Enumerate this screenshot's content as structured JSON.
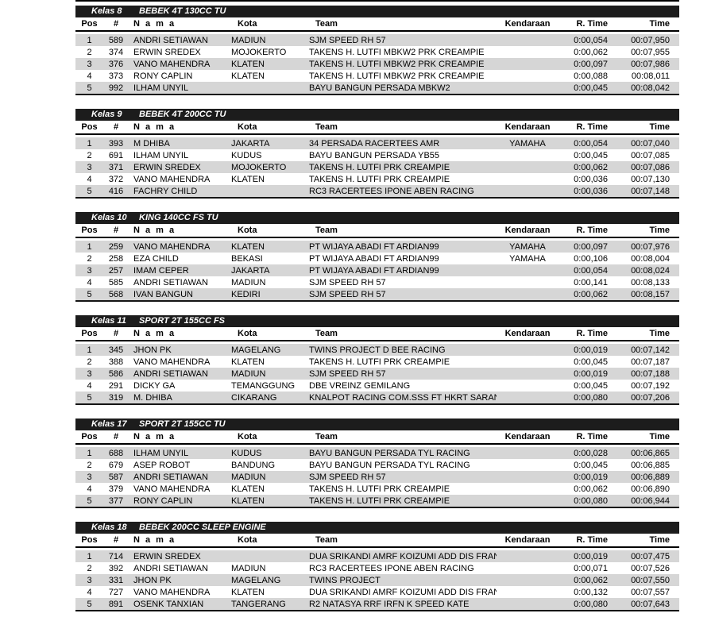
{
  "colors": {
    "bar_bg": "#1c1c1c",
    "bar_text": "#ffffff",
    "row_stripe": "#d6d6d6",
    "rule": "#000000"
  },
  "columns": [
    "Pos",
    "#",
    "N a m a",
    "Kota",
    "Team",
    "Kendaraan",
    "R. Time",
    "Time"
  ],
  "sections": [
    {
      "kelas": "Kelas 8",
      "title": "BEBEK 4T 130CC TU",
      "rows": [
        {
          "pos": "1",
          "num": "589",
          "nama": "ANDRI SETIAWAN",
          "kota": "MADIUN",
          "team": "SJM SPEED RH 57",
          "kendaraan": "",
          "rtime": "0:00,054",
          "time": "00:07,950"
        },
        {
          "pos": "2",
          "num": "374",
          "nama": "ERWIN SREDEX",
          "kota": "MOJOKERTO",
          "team": "TAKENS H. LUTFI MBKW2 PRK CREAMPIE",
          "kendaraan": "",
          "rtime": "0:00,062",
          "time": "00:07,955"
        },
        {
          "pos": "3",
          "num": "376",
          "nama": "VANO MAHENDRA",
          "kota": "KLATEN",
          "team": "TAKENS H. LUTFI MBKW2 PRK CREAMPIE",
          "kendaraan": "",
          "rtime": "0:00,097",
          "time": "00:07,986"
        },
        {
          "pos": "4",
          "num": "373",
          "nama": "RONY CAPLIN",
          "kota": "KLATEN",
          "team": "TAKENS H. LUTFI MBKW2 PRK CREAMPIE",
          "kendaraan": "",
          "rtime": "0:00,088",
          "time": "00:08,011"
        },
        {
          "pos": "5",
          "num": "992",
          "nama": "ILHAM UNYIL",
          "kota": "",
          "team": "BAYU BANGUN PERSADA MBKW2",
          "kendaraan": "",
          "rtime": "0:00,045",
          "time": "00:08,042"
        }
      ]
    },
    {
      "kelas": "Kelas 9",
      "title": "BEBEK 4T 200CC TU",
      "rows": [
        {
          "pos": "1",
          "num": "393",
          "nama": "M DHIBA",
          "kota": "JAKARTA",
          "team": "34 PERSADA RACERTEES AMR",
          "kendaraan": "YAMAHA",
          "rtime": "0:00,054",
          "time": "00:07,040"
        },
        {
          "pos": "2",
          "num": "691",
          "nama": "ILHAM UNYIL",
          "kota": "KUDUS",
          "team": "BAYU BANGUN PERSADA YB55",
          "kendaraan": "",
          "rtime": "0:00,045",
          "time": "00:07,085"
        },
        {
          "pos": "3",
          "num": "371",
          "nama": "ERWIN SREDEX",
          "kota": "MOJOKERTO",
          "team": "TAKENS H. LUTFI PRK CREAMPIE",
          "kendaraan": "",
          "rtime": "0:00,062",
          "time": "00:07,086"
        },
        {
          "pos": "4",
          "num": "372",
          "nama": "VANO MAHENDRA",
          "kota": "KLATEN",
          "team": "TAKENS H. LUTFI PRK CREAMPIE",
          "kendaraan": "",
          "rtime": "0:00,036",
          "time": "00:07,130"
        },
        {
          "pos": "5",
          "num": "416",
          "nama": "FACHRY CHILD",
          "kota": "",
          "team": "RC3 RACERTEES IPONE ABEN RACING",
          "kendaraan": "",
          "rtime": "0:00,036",
          "time": "00:07,148"
        }
      ]
    },
    {
      "kelas": "Kelas 10",
      "title": "KING 140CC FS TU",
      "rows": [
        {
          "pos": "1",
          "num": "259",
          "nama": "VANO MAHENDRA",
          "kota": "KLATEN",
          "team": "PT WIJAYA ABADI FT ARDIAN99",
          "kendaraan": "YAMAHA",
          "rtime": "0:00,097",
          "time": "00:07,976"
        },
        {
          "pos": "2",
          "num": "258",
          "nama": "EZA CHILD",
          "kota": "BEKASI",
          "team": "PT WIJAYA ABADI FT ARDIAN99",
          "kendaraan": "YAMAHA",
          "rtime": "0:00,106",
          "time": "00:08,004"
        },
        {
          "pos": "3",
          "num": "257",
          "nama": "IMAM CEPER",
          "kota": "JAKARTA",
          "team": "PT WIJAYA ABADI FT ARDIAN99",
          "kendaraan": "",
          "rtime": "0:00,054",
          "time": "00:08,024"
        },
        {
          "pos": "4",
          "num": "585",
          "nama": "ANDRI SETIAWAN",
          "kota": "MADIUN",
          "team": "SJM SPEED RH 57",
          "kendaraan": "",
          "rtime": "0:00,141",
          "time": "00:08,133"
        },
        {
          "pos": "5",
          "num": "568",
          "nama": "IVAN BANGUN",
          "kota": "KEDIRI",
          "team": "SJM SPEED RH 57",
          "kendaraan": "",
          "rtime": "0:00,062",
          "time": "00:08,157"
        }
      ]
    },
    {
      "kelas": "Kelas 11",
      "title": "SPORT 2T 155CC FS",
      "rows": [
        {
          "pos": "1",
          "num": "345",
          "nama": "JHON PK",
          "kota": "MAGELANG",
          "team": "TWINS PROJECT D BEE RACING",
          "kendaraan": "",
          "rtime": "0:00,019",
          "time": "00:07,142"
        },
        {
          "pos": "2",
          "num": "388",
          "nama": "VANO MAHENDRA",
          "kota": "KLATEN",
          "team": "TAKENS H. LUTFI PRK CREAMPIE",
          "kendaraan": "",
          "rtime": "0:00,045",
          "time": "00:07,187"
        },
        {
          "pos": "3",
          "num": "586",
          "nama": "ANDRI SETIAWAN",
          "kota": "MADIUN",
          "team": "SJM SPEED RH 57",
          "kendaraan": "",
          "rtime": "0:00,019",
          "time": "00:07,188"
        },
        {
          "pos": "4",
          "num": "291",
          "nama": "DICKY GA",
          "kota": "TEMANGGUNG",
          "team": "DBE VREINZ GEMILANG",
          "kendaraan": "",
          "rtime": "0:00,045",
          "time": "00:07,192"
        },
        {
          "pos": "5",
          "num": "319",
          "nama": "M. DHIBA",
          "kota": "CIKARANG",
          "team": "KNALPOT RACING COM.SSS FT HKRT SARAN",
          "kendaraan": "",
          "rtime": "0:00,080",
          "time": "00:07,206"
        }
      ]
    },
    {
      "kelas": "Kelas 17",
      "title": "SPORT 2T 155CC TU",
      "rows": [
        {
          "pos": "1",
          "num": "688",
          "nama": "ILHAM UNYIL",
          "kota": "KUDUS",
          "team": "BAYU BANGUN PERSADA TYL RACING",
          "kendaraan": "",
          "rtime": "0:00,028",
          "time": "00:06,865"
        },
        {
          "pos": "2",
          "num": "679",
          "nama": "ASEP ROBOT",
          "kota": "BANDUNG",
          "team": "BAYU BANGUN PERSADA TYL RACING",
          "kendaraan": "",
          "rtime": "0:00,045",
          "time": "00:06,885"
        },
        {
          "pos": "3",
          "num": "587",
          "nama": "ANDRI SETIAWAN",
          "kota": "MADIUN",
          "team": "SJM SPEED RH 57",
          "kendaraan": "",
          "rtime": "0:00,019",
          "time": "00:06,889"
        },
        {
          "pos": "4",
          "num": "379",
          "nama": "VANO MAHENDRA",
          "kota": "KLATEN",
          "team": "TAKENS H. LUTFI PRK CREAMPIE",
          "kendaraan": "",
          "rtime": "0:00,062",
          "time": "00:06,890"
        },
        {
          "pos": "5",
          "num": "377",
          "nama": "RONY CAPLIN",
          "kota": "KLATEN",
          "team": "TAKENS H. LUTFI PRK CREAMPIE",
          "kendaraan": "",
          "rtime": "0:00,080",
          "time": "00:06,944"
        }
      ]
    },
    {
      "kelas": "Kelas 18",
      "title": "BEBEK 200CC SLEEP ENGINE",
      "rows": [
        {
          "pos": "1",
          "num": "714",
          "nama": "ERWIN SREDEX",
          "kota": "",
          "team": "DUA SRIKANDI AMRF KOIZUMI ADD DIS FRAN",
          "kendaraan": "",
          "rtime": "0:00,019",
          "time": "00:07,475"
        },
        {
          "pos": "2",
          "num": "392",
          "nama": "ANDRI SETIAWAN",
          "kota": "MADIUN",
          "team": "RC3 RACERTEES IPONE ABEN RACING",
          "kendaraan": "",
          "rtime": "0:00,071",
          "time": "00:07,526"
        },
        {
          "pos": "3",
          "num": "331",
          "nama": "JHON PK",
          "kota": "MAGELANG",
          "team": "TWINS PROJECT",
          "kendaraan": "",
          "rtime": "0:00,062",
          "time": "00:07,550"
        },
        {
          "pos": "4",
          "num": "727",
          "nama": "VANO MAHENDRA",
          "kota": "KLATEN",
          "team": "DUA SRIKANDI AMRF KOIZUMI ADD DIS FRAN",
          "kendaraan": "",
          "rtime": "0:00,132",
          "time": "00:07,557"
        },
        {
          "pos": "5",
          "num": "891",
          "nama": "OSENK TANXIAN",
          "kota": "TANGERANG",
          "team": "R2 NATASYA RRF IRFN K SPEED KATE",
          "kendaraan": "",
          "rtime": "0:00,080",
          "time": "00:07,643"
        }
      ]
    }
  ]
}
